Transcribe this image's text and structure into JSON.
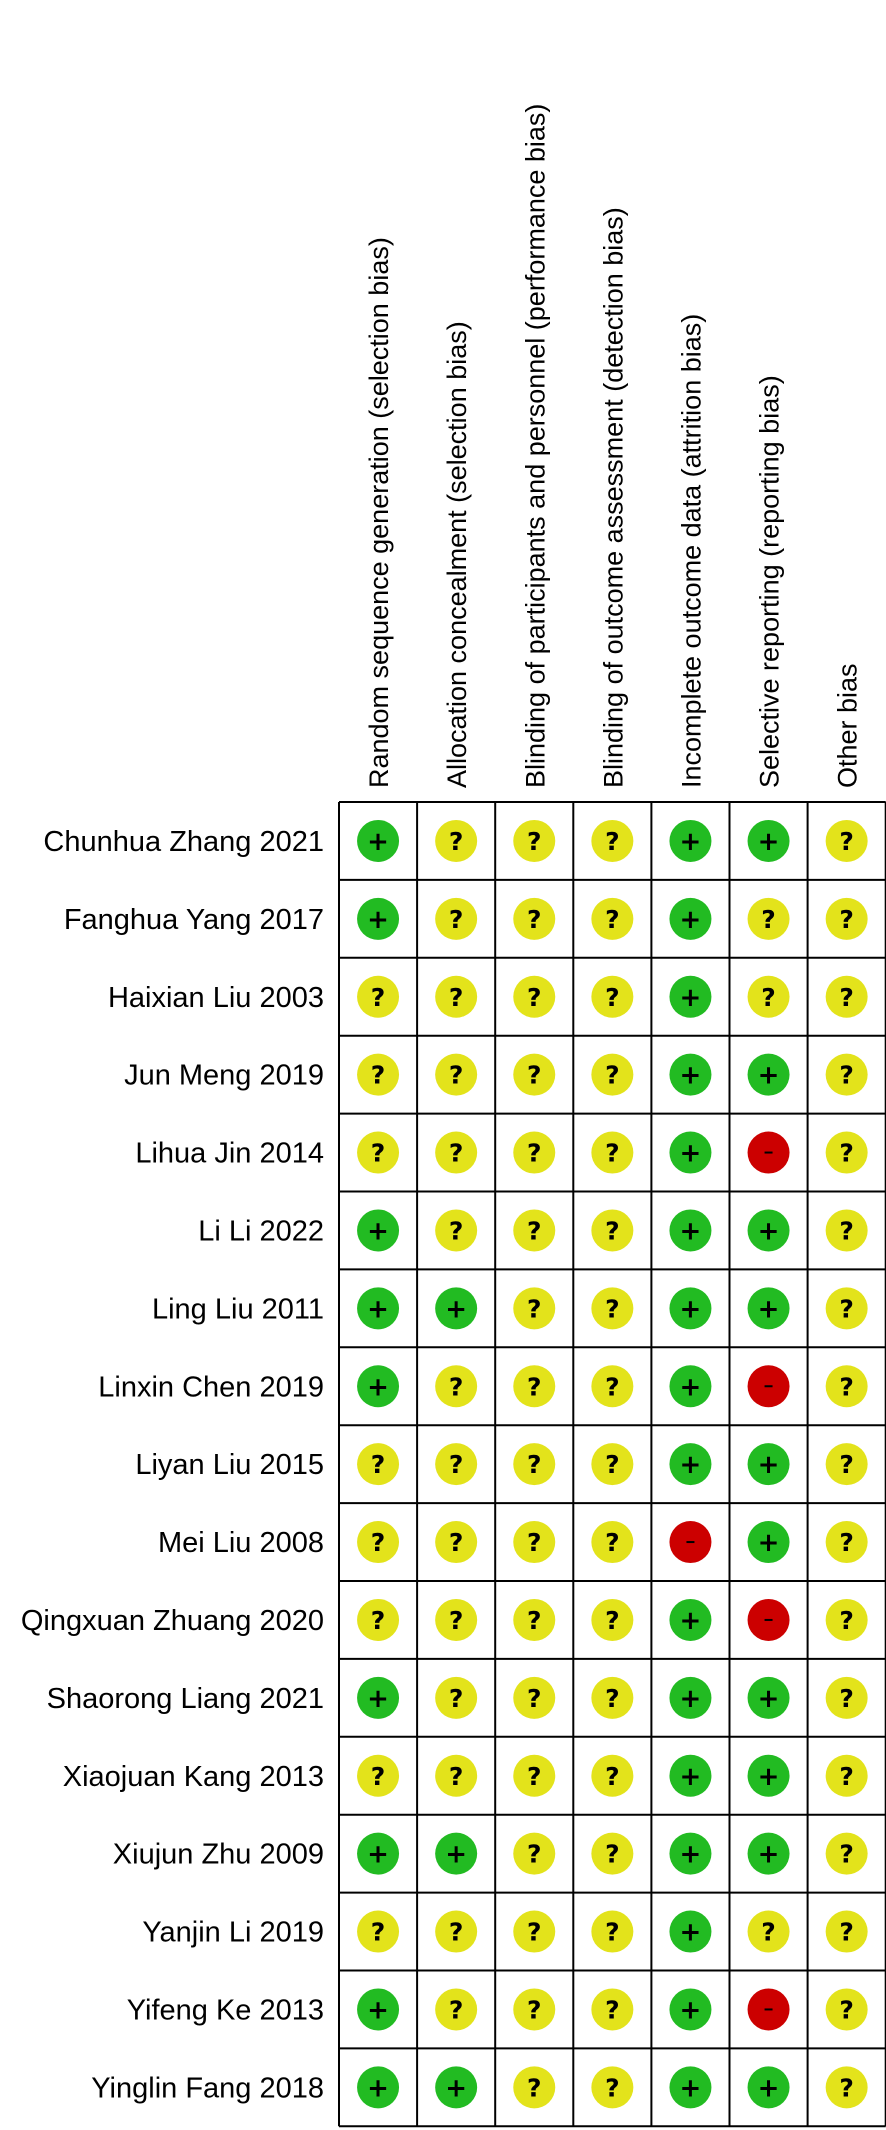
{
  "chart_data": {
    "type": "table",
    "columns": [
      "Random sequence generation (selection bias)",
      "Allocation concealment (selection bias)",
      "Blinding of participants and personnel (performance bias)",
      "Blinding of outcome assessment (detection bias)",
      "Incomplete outcome data (attrition bias)",
      "Selective reporting (reporting bias)",
      "Other bias"
    ],
    "rows": [
      "Chunhua Zhang 2021",
      "Fanghua Yang 2017",
      "Haixian Liu 2003",
      "Jun Meng 2019",
      "Lihua Jin 2014",
      "Li Li 2022",
      "Ling Liu 2011",
      "Linxin Chen 2019",
      "Liyan Liu 2015",
      "Mei Liu 2008",
      "Qingxuan Zhuang 2020",
      "Shaorong Liang 2021",
      "Xiaojuan Kang 2013",
      "Xiujun Zhu 2009",
      "Yanjin Li 2019",
      "Yifeng Ke 2013",
      "Yinglin Fang 2018"
    ],
    "judgements": [
      [
        "low",
        "unclear",
        "unclear",
        "unclear",
        "low",
        "low",
        "unclear"
      ],
      [
        "low",
        "unclear",
        "unclear",
        "unclear",
        "low",
        "unclear",
        "unclear"
      ],
      [
        "unclear",
        "unclear",
        "unclear",
        "unclear",
        "low",
        "unclear",
        "unclear"
      ],
      [
        "unclear",
        "unclear",
        "unclear",
        "unclear",
        "low",
        "low",
        "unclear"
      ],
      [
        "unclear",
        "unclear",
        "unclear",
        "unclear",
        "low",
        "high",
        "unclear"
      ],
      [
        "low",
        "unclear",
        "unclear",
        "unclear",
        "low",
        "low",
        "unclear"
      ],
      [
        "low",
        "low",
        "unclear",
        "unclear",
        "low",
        "low",
        "unclear"
      ],
      [
        "low",
        "unclear",
        "unclear",
        "unclear",
        "low",
        "high",
        "unclear"
      ],
      [
        "unclear",
        "unclear",
        "unclear",
        "unclear",
        "low",
        "low",
        "unclear"
      ],
      [
        "unclear",
        "unclear",
        "unclear",
        "unclear",
        "high",
        "low",
        "unclear"
      ],
      [
        "unclear",
        "unclear",
        "unclear",
        "unclear",
        "low",
        "high",
        "unclear"
      ],
      [
        "low",
        "unclear",
        "unclear",
        "unclear",
        "low",
        "low",
        "unclear"
      ],
      [
        "unclear",
        "unclear",
        "unclear",
        "unclear",
        "low",
        "low",
        "unclear"
      ],
      [
        "low",
        "low",
        "unclear",
        "unclear",
        "low",
        "low",
        "unclear"
      ],
      [
        "unclear",
        "unclear",
        "unclear",
        "unclear",
        "low",
        "unclear",
        "unclear"
      ],
      [
        "low",
        "unclear",
        "unclear",
        "unclear",
        "low",
        "high",
        "unclear"
      ],
      [
        "low",
        "low",
        "unclear",
        "unclear",
        "low",
        "low",
        "unclear"
      ]
    ],
    "symbols": {
      "low": "+",
      "unclear": "?",
      "high": "−"
    },
    "colors": {
      "low": "#22bb22",
      "unclear": "#e3e31b",
      "high": "#cc0000",
      "grid": "#000000"
    }
  }
}
